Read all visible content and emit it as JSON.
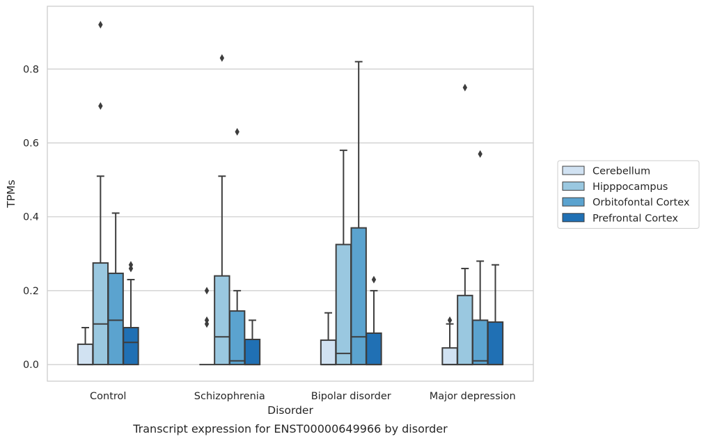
{
  "chart_data": {
    "type": "box",
    "title": "",
    "caption": "Transcript expression for ENST00000649966 by disorder",
    "xlabel": "Disorder",
    "ylabel": "TPMs",
    "ylim": [
      -0.045,
      0.97
    ],
    "yticks": [
      0.0,
      0.2,
      0.4,
      0.6,
      0.8
    ],
    "ytick_labels": [
      "0.0",
      "0.2",
      "0.4",
      "0.6",
      "0.8"
    ],
    "grid": "horizontal",
    "legend_position": "right",
    "categories": [
      "Control",
      "Schizophrenia",
      "Bipolar disorder",
      "Major depression"
    ],
    "series": [
      {
        "name": "Cerebellum",
        "color": "#d1e2f2",
        "boxes": [
          {
            "q1": 0.0,
            "median": 0.0,
            "q3": 0.055,
            "whisker_low": 0.0,
            "whisker_high": 0.1,
            "outliers": []
          },
          {
            "q1": 0.0,
            "median": 0.0,
            "q3": 0.0,
            "whisker_low": 0.0,
            "whisker_high": 0.0,
            "outliers": [
              0.2,
              0.12,
              0.11
            ]
          },
          {
            "q1": 0.0,
            "median": 0.0,
            "q3": 0.066,
            "whisker_low": 0.0,
            "whisker_high": 0.14,
            "outliers": []
          },
          {
            "q1": 0.0,
            "median": 0.0,
            "q3": 0.045,
            "whisker_low": 0.0,
            "whisker_high": 0.11,
            "outliers": [
              0.12
            ]
          }
        ]
      },
      {
        "name": "Hipppocampus",
        "color": "#9ac8e0",
        "boxes": [
          {
            "q1": 0.0,
            "median": 0.11,
            "q3": 0.275,
            "whisker_low": 0.0,
            "whisker_high": 0.51,
            "outliers": [
              0.7,
              0.92
            ]
          },
          {
            "q1": 0.0,
            "median": 0.075,
            "q3": 0.24,
            "whisker_low": 0.0,
            "whisker_high": 0.51,
            "outliers": [
              0.83
            ]
          },
          {
            "q1": 0.0,
            "median": 0.03,
            "q3": 0.325,
            "whisker_low": 0.0,
            "whisker_high": 0.58,
            "outliers": []
          },
          {
            "q1": 0.0,
            "median": 0.0,
            "q3": 0.187,
            "whisker_low": 0.0,
            "whisker_high": 0.26,
            "outliers": [
              0.75
            ]
          }
        ]
      },
      {
        "name": "Orbitofontal Cortex",
        "color": "#5ba3cf",
        "boxes": [
          {
            "q1": 0.0,
            "median": 0.12,
            "q3": 0.247,
            "whisker_low": 0.0,
            "whisker_high": 0.41,
            "outliers": []
          },
          {
            "q1": 0.0,
            "median": 0.01,
            "q3": 0.145,
            "whisker_low": 0.0,
            "whisker_high": 0.2,
            "outliers": [
              0.63
            ]
          },
          {
            "q1": 0.0,
            "median": 0.075,
            "q3": 0.37,
            "whisker_low": 0.0,
            "whisker_high": 0.82,
            "outliers": []
          },
          {
            "q1": 0.0,
            "median": 0.01,
            "q3": 0.12,
            "whisker_low": 0.0,
            "whisker_high": 0.28,
            "outliers": [
              0.57
            ]
          }
        ]
      },
      {
        "name": "Prefrontal Cortex",
        "color": "#2070b4",
        "boxes": [
          {
            "q1": 0.0,
            "median": 0.06,
            "q3": 0.1,
            "whisker_low": 0.0,
            "whisker_high": 0.23,
            "outliers": [
              0.26,
              0.27
            ]
          },
          {
            "q1": 0.0,
            "median": 0.0,
            "q3": 0.068,
            "whisker_low": 0.0,
            "whisker_high": 0.12,
            "outliers": []
          },
          {
            "q1": 0.0,
            "median": 0.0,
            "q3": 0.085,
            "whisker_low": 0.0,
            "whisker_high": 0.2,
            "outliers": [
              0.23
            ]
          },
          {
            "q1": 0.0,
            "median": 0.0,
            "q3": 0.115,
            "whisker_low": 0.0,
            "whisker_high": 0.27,
            "outliers": []
          }
        ]
      }
    ]
  },
  "colors": {
    "frame": "#cccccc",
    "grid": "#cccccc",
    "line": "#3d3d3d",
    "text": "#262626"
  }
}
